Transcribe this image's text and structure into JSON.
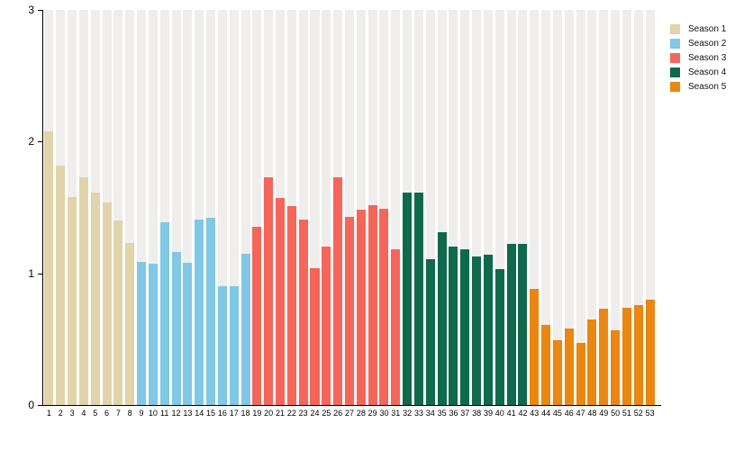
{
  "chart_data": {
    "type": "bar",
    "title": "",
    "xlabel": "",
    "ylabel": "",
    "ylim": [
      0,
      3
    ],
    "yticks": [
      0,
      1,
      2,
      3
    ],
    "grid": "vertical-background-bands",
    "band_color": "#efeeec",
    "axis_color": "#000000",
    "legend_position": "top-right",
    "x": [
      1,
      2,
      3,
      4,
      5,
      6,
      7,
      8,
      9,
      10,
      11,
      12,
      13,
      14,
      15,
      16,
      17,
      18,
      19,
      20,
      21,
      22,
      23,
      24,
      25,
      26,
      27,
      28,
      29,
      30,
      31,
      32,
      33,
      34,
      35,
      36,
      37,
      38,
      39,
      40,
      41,
      42,
      43,
      44,
      45,
      46,
      47,
      48,
      49,
      50,
      51,
      52,
      53
    ],
    "values": [
      2.08,
      1.82,
      1.58,
      1.73,
      1.61,
      1.54,
      1.4,
      1.23,
      1.09,
      1.07,
      1.39,
      1.16,
      1.08,
      1.41,
      1.42,
      0.9,
      0.9,
      1.15,
      1.35,
      1.73,
      1.57,
      1.51,
      1.41,
      1.04,
      1.2,
      1.73,
      1.43,
      1.48,
      1.52,
      1.49,
      1.18,
      1.61,
      1.61,
      1.11,
      1.31,
      1.2,
      1.18,
      1.13,
      1.14,
      1.03,
      1.22,
      1.22,
      0.88,
      0.61,
      0.49,
      0.58,
      0.47,
      0.65,
      0.73,
      0.57,
      0.74,
      0.76,
      0.8
    ],
    "series": [
      {
        "name": "Season 1",
        "color": "#e0d4a8",
        "start": 1,
        "end": 8
      },
      {
        "name": "Season 2",
        "color": "#7fc8e7",
        "start": 9,
        "end": 18
      },
      {
        "name": "Season 3",
        "color": "#f96459",
        "start": 19,
        "end": 31
      },
      {
        "name": "Season 4",
        "color": "#0d6a4b",
        "start": 32,
        "end": 42
      },
      {
        "name": "Season 5",
        "color": "#ec860e",
        "start": 43,
        "end": 53
      }
    ]
  }
}
